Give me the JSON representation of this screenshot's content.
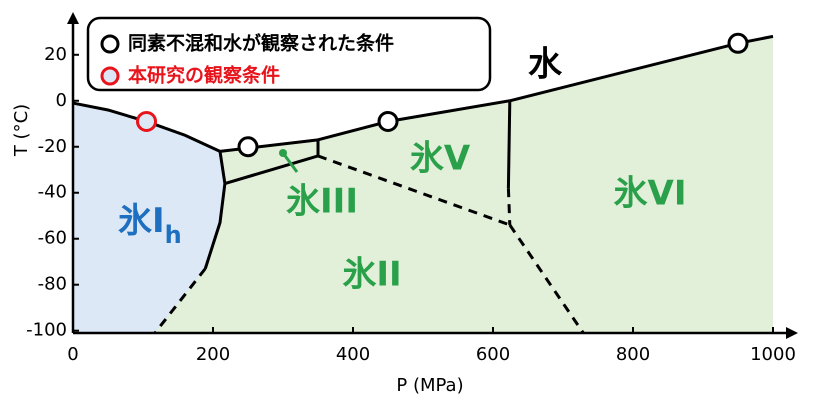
{
  "chart_data": {
    "type": "phase-diagram",
    "xlabel": "P (MPa)",
    "ylabel": "T (°C)",
    "xlim": [
      0,
      1000
    ],
    "ylim": [
      -101,
      36
    ],
    "xticks": [
      0,
      200,
      400,
      600,
      800,
      1000
    ],
    "yticks": [
      -100,
      -80,
      -60,
      -40,
      -20,
      0,
      20
    ],
    "boundaries": [
      {
        "x": [
          0,
          50,
          105,
          160,
          210
        ],
        "y": [
          -1,
          -4,
          -9,
          -15,
          -22
        ],
        "style": "solid"
      },
      {
        "x": [
          210,
          350
        ],
        "y": [
          -22,
          -17
        ],
        "style": "solid"
      },
      {
        "x": [
          350,
          450,
          624
        ],
        "y": [
          -17,
          -9,
          0
        ],
        "style": "solid"
      },
      {
        "x": [
          624,
          950,
          1000
        ],
        "y": [
          0,
          25,
          28
        ],
        "style": "solid"
      },
      {
        "x": [
          210,
          217
        ],
        "y": [
          -22,
          -36
        ],
        "style": "solid"
      },
      {
        "x": [
          217,
          210,
          189
        ],
        "y": [
          -36,
          -53,
          -73
        ],
        "style": "solid"
      },
      {
        "x": [
          189,
          117
        ],
        "y": [
          -73,
          -101
        ],
        "style": "dashed"
      },
      {
        "x": [
          217,
          350
        ],
        "y": [
          -36,
          -24
        ],
        "style": "solid"
      },
      {
        "x": [
          350,
          350
        ],
        "y": [
          -17,
          -24
        ],
        "style": "solid"
      },
      {
        "x": [
          624,
          622
        ],
        "y": [
          0,
          -38
        ],
        "style": "solid"
      },
      {
        "x": [
          622,
          624
        ],
        "y": [
          -38,
          -54
        ],
        "style": "dashed"
      },
      {
        "x": [
          350,
          624
        ],
        "y": [
          -24,
          -54
        ],
        "style": "dashed"
      },
      {
        "x": [
          624,
          729
        ],
        "y": [
          -54,
          -101
        ],
        "style": "dashed"
      }
    ],
    "series": [
      {
        "name": "同素不混和水が観察された条件",
        "color": "#000000",
        "fill": "#ffffff",
        "x": [
          250,
          450,
          950
        ],
        "y": [
          -20,
          -9,
          25
        ]
      },
      {
        "name": "本研究の観察条件",
        "color": "#e8141c",
        "fill": "#dce8f5",
        "x": [
          105
        ],
        "y": [
          -9
        ]
      }
    ],
    "regions": {
      "liquid": "水",
      "ice_v": "氷V",
      "ice_vi": "氷VI",
      "ice_iii": "氷III",
      "ice_ii": "氷II",
      "ice_ih": "氷I",
      "ice_ih_sub": "h"
    }
  }
}
